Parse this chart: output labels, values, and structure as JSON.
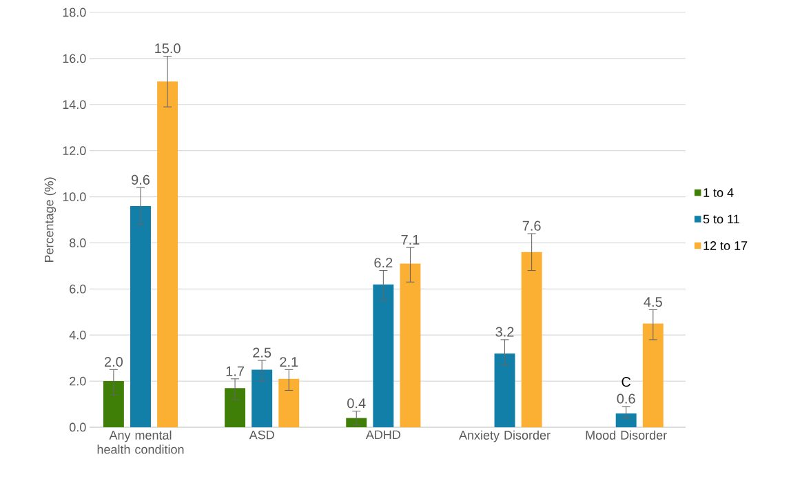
{
  "chart_data": {
    "type": "bar",
    "ylabel": "Percentage (%)",
    "categories": [
      "Any mental health condition",
      "ASD",
      "ADHD",
      "Anxiety Disorder",
      "Mood Disorder"
    ],
    "series": [
      {
        "name": "1 to 4",
        "color": "#3f7f07",
        "values": [
          2.0,
          1.7,
          0.4,
          null,
          null
        ],
        "value_labels": [
          "2.0",
          "1.7",
          "0.4",
          null,
          null
        ],
        "errors": [
          [
            1.4,
            2.5
          ],
          [
            1.2,
            2.1
          ],
          [
            0.1,
            0.7
          ],
          null,
          null
        ]
      },
      {
        "name": "5 to 11",
        "color": "#127fa8",
        "values": [
          9.6,
          2.5,
          6.2,
          3.2,
          0.6
        ],
        "value_labels": [
          "9.6",
          "2.5",
          "6.2",
          "3.2",
          "0.6"
        ],
        "errors": [
          [
            8.8,
            10.4
          ],
          [
            2.0,
            2.9
          ],
          [
            5.5,
            6.8
          ],
          [
            2.7,
            3.8
          ],
          [
            0.4,
            0.9
          ]
        ]
      },
      {
        "name": "12 to 17",
        "color": "#fbb034",
        "values": [
          15.0,
          2.1,
          7.1,
          7.6,
          4.5
        ],
        "value_labels": [
          "15.0",
          "2.1",
          "7.1",
          "7.6",
          "4.5"
        ],
        "errors": [
          [
            13.9,
            16.1
          ],
          [
            1.6,
            2.5
          ],
          [
            6.3,
            7.8
          ],
          [
            6.8,
            8.4
          ],
          [
            3.8,
            5.1
          ]
        ]
      }
    ],
    "annotations": [
      {
        "text": "C",
        "x": "Mood Disorder",
        "y": 0.6
      }
    ],
    "ylim": [
      0,
      18
    ],
    "yticks": [
      {
        "value": 0,
        "label": "0.0"
      },
      {
        "value": 2,
        "label": "2.0"
      },
      {
        "value": 4,
        "label": "4.0"
      },
      {
        "value": 6,
        "label": "6.0"
      },
      {
        "value": 8,
        "label": "8.0"
      },
      {
        "value": 10,
        "label": "10.0"
      },
      {
        "value": 12,
        "label": "12.0"
      },
      {
        "value": 14,
        "label": "14.0"
      },
      {
        "value": 16,
        "label": "16.0"
      },
      {
        "value": 18,
        "label": "18.0"
      }
    ],
    "grid": "y",
    "legend": "right"
  }
}
